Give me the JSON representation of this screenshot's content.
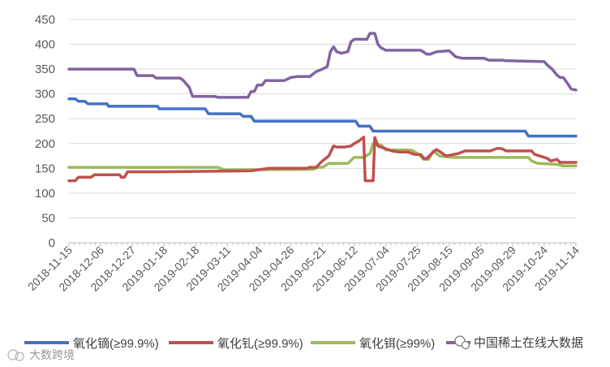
{
  "chart_data": {
    "type": "line",
    "title": "",
    "xlabel": "",
    "ylabel": "",
    "ylim": [
      0,
      450
    ],
    "yticks": [
      0,
      50,
      100,
      150,
      200,
      250,
      300,
      350,
      400,
      450
    ],
    "x_tick_labels": [
      "2018-11-15",
      "2018-12-06",
      "2018-12-27",
      "2019-01-18",
      "2019-02-18",
      "2019-03-11",
      "2019-04-04",
      "2019-04-26",
      "2019-05-21",
      "2019-06-12",
      "2019-07-04",
      "2019-07-25",
      "2019-08-15",
      "2019-09-05",
      "2019-09-29",
      "2019-10-24",
      "2019-11-14"
    ],
    "grid": "horizontal",
    "legend_position": "bottom",
    "series": [
      {
        "name": "氧化镝(≥99.9%)",
        "color": "#4472c4",
        "points": [
          [
            0,
            290
          ],
          [
            0.2,
            290
          ],
          [
            0.3,
            285
          ],
          [
            0.5,
            285
          ],
          [
            0.6,
            280
          ],
          [
            1.2,
            280
          ],
          [
            1.25,
            275
          ],
          [
            2.8,
            275
          ],
          [
            2.85,
            270
          ],
          [
            4.3,
            270
          ],
          [
            4.4,
            260
          ],
          [
            5.4,
            260
          ],
          [
            5.5,
            255
          ],
          [
            5.75,
            255
          ],
          [
            5.85,
            245
          ],
          [
            9.05,
            245
          ],
          [
            9.15,
            235
          ],
          [
            9.5,
            235
          ],
          [
            9.6,
            225
          ],
          [
            14.4,
            225
          ],
          [
            14.5,
            215
          ],
          [
            16,
            215
          ]
        ]
      },
      {
        "name": "氧化钆(≥99.9%)",
        "color": "#c0504d",
        "points": [
          [
            0,
            125
          ],
          [
            0.2,
            125
          ],
          [
            0.3,
            132
          ],
          [
            0.7,
            132
          ],
          [
            0.8,
            137
          ],
          [
            1.4,
            137
          ],
          [
            1.6,
            137
          ],
          [
            1.65,
            132
          ],
          [
            1.75,
            132
          ],
          [
            1.85,
            143
          ],
          [
            2.8,
            143
          ],
          [
            5.75,
            145
          ],
          [
            6.3,
            150
          ],
          [
            7.5,
            150
          ],
          [
            7.6,
            152
          ],
          [
            7.8,
            152
          ],
          [
            8.0,
            165
          ],
          [
            8.2,
            175
          ],
          [
            8.35,
            195
          ],
          [
            8.45,
            193
          ],
          [
            8.7,
            193
          ],
          [
            8.9,
            195
          ],
          [
            9.0,
            200
          ],
          [
            9.15,
            205
          ],
          [
            9.3,
            213
          ],
          [
            9.35,
            125
          ],
          [
            9.6,
            125
          ],
          [
            9.65,
            212
          ],
          [
            9.75,
            195
          ],
          [
            10.2,
            185
          ],
          [
            10.4,
            183
          ],
          [
            10.7,
            183
          ],
          [
            10.9,
            178
          ],
          [
            11.1,
            178
          ],
          [
            11.2,
            170
          ],
          [
            11.3,
            170
          ],
          [
            11.45,
            180
          ],
          [
            11.6,
            188
          ],
          [
            11.75,
            182
          ],
          [
            11.9,
            175
          ],
          [
            12.3,
            180
          ],
          [
            12.5,
            185
          ],
          [
            13.3,
            185
          ],
          [
            13.5,
            190
          ],
          [
            13.65,
            190
          ],
          [
            13.8,
            185
          ],
          [
            14.6,
            185
          ],
          [
            14.7,
            178
          ],
          [
            15.1,
            170
          ],
          [
            15.2,
            165
          ],
          [
            15.4,
            168
          ],
          [
            15.5,
            162
          ],
          [
            16,
            162
          ]
        ]
      },
      {
        "name": "氧化铒(≥99%)",
        "color": "#9bbb59",
        "points": [
          [
            0,
            152
          ],
          [
            4.7,
            152
          ],
          [
            4.9,
            147
          ],
          [
            7.7,
            148
          ],
          [
            7.85,
            152
          ],
          [
            8.0,
            152
          ],
          [
            8.2,
            160
          ],
          [
            8.8,
            160
          ],
          [
            9.0,
            172
          ],
          [
            9.3,
            172
          ],
          [
            9.5,
            180
          ],
          [
            9.6,
            200
          ],
          [
            9.85,
            197
          ],
          [
            10.0,
            187
          ],
          [
            10.8,
            187
          ],
          [
            11.0,
            180
          ],
          [
            11.2,
            168
          ],
          [
            11.35,
            168
          ],
          [
            11.5,
            185
          ],
          [
            11.7,
            175
          ],
          [
            12.1,
            172
          ],
          [
            14.5,
            172
          ],
          [
            14.6,
            165
          ],
          [
            14.8,
            160
          ],
          [
            15.4,
            158
          ],
          [
            15.6,
            155
          ],
          [
            16,
            155
          ]
        ]
      },
      {
        "name": "",
        "color": "#8064a2",
        "points": [
          [
            0,
            350
          ],
          [
            2.05,
            350
          ],
          [
            2.15,
            337
          ],
          [
            2.65,
            337
          ],
          [
            2.75,
            332
          ],
          [
            3.5,
            332
          ],
          [
            3.6,
            328
          ],
          [
            3.8,
            313
          ],
          [
            3.9,
            295
          ],
          [
            4.6,
            295
          ],
          [
            4.7,
            293
          ],
          [
            5.65,
            293
          ],
          [
            5.75,
            305
          ],
          [
            5.85,
            305
          ],
          [
            5.95,
            318
          ],
          [
            6.1,
            318
          ],
          [
            6.2,
            327
          ],
          [
            6.8,
            327
          ],
          [
            7.0,
            333
          ],
          [
            7.2,
            335
          ],
          [
            7.6,
            335
          ],
          [
            7.8,
            345
          ],
          [
            8.0,
            350
          ],
          [
            8.15,
            355
          ],
          [
            8.25,
            385
          ],
          [
            8.35,
            395
          ],
          [
            8.45,
            385
          ],
          [
            8.6,
            382
          ],
          [
            8.8,
            385
          ],
          [
            8.9,
            405
          ],
          [
            9.0,
            410
          ],
          [
            9.4,
            410
          ],
          [
            9.5,
            422
          ],
          [
            9.65,
            422
          ],
          [
            9.75,
            400
          ],
          [
            9.85,
            393
          ],
          [
            10.0,
            388
          ],
          [
            11.1,
            388
          ],
          [
            11.3,
            380
          ],
          [
            11.4,
            380
          ],
          [
            11.6,
            385
          ],
          [
            12.0,
            387
          ],
          [
            12.2,
            375
          ],
          [
            12.4,
            372
          ],
          [
            12.6,
            372
          ],
          [
            13.1,
            372
          ],
          [
            13.25,
            368
          ],
          [
            13.7,
            368
          ],
          [
            13.75,
            367
          ],
          [
            15.0,
            365
          ],
          [
            15.1,
            358
          ],
          [
            15.25,
            350
          ],
          [
            15.4,
            338
          ],
          [
            15.5,
            333
          ],
          [
            15.6,
            333
          ],
          [
            15.75,
            320
          ],
          [
            15.85,
            310
          ],
          [
            16,
            308
          ]
        ]
      }
    ]
  },
  "legend": {
    "items": [
      {
        "label": "氧化镝(≥99.9%)",
        "color": "#4472c4"
      },
      {
        "label": "氧化钆(≥99.9%)",
        "color": "#c0504d"
      },
      {
        "label": "氧化铒(≥99%)",
        "color": "#9bbb59"
      }
    ],
    "overlay_text": "中国稀土在线大数据"
  },
  "watermark": {
    "text": "大数跨境"
  }
}
